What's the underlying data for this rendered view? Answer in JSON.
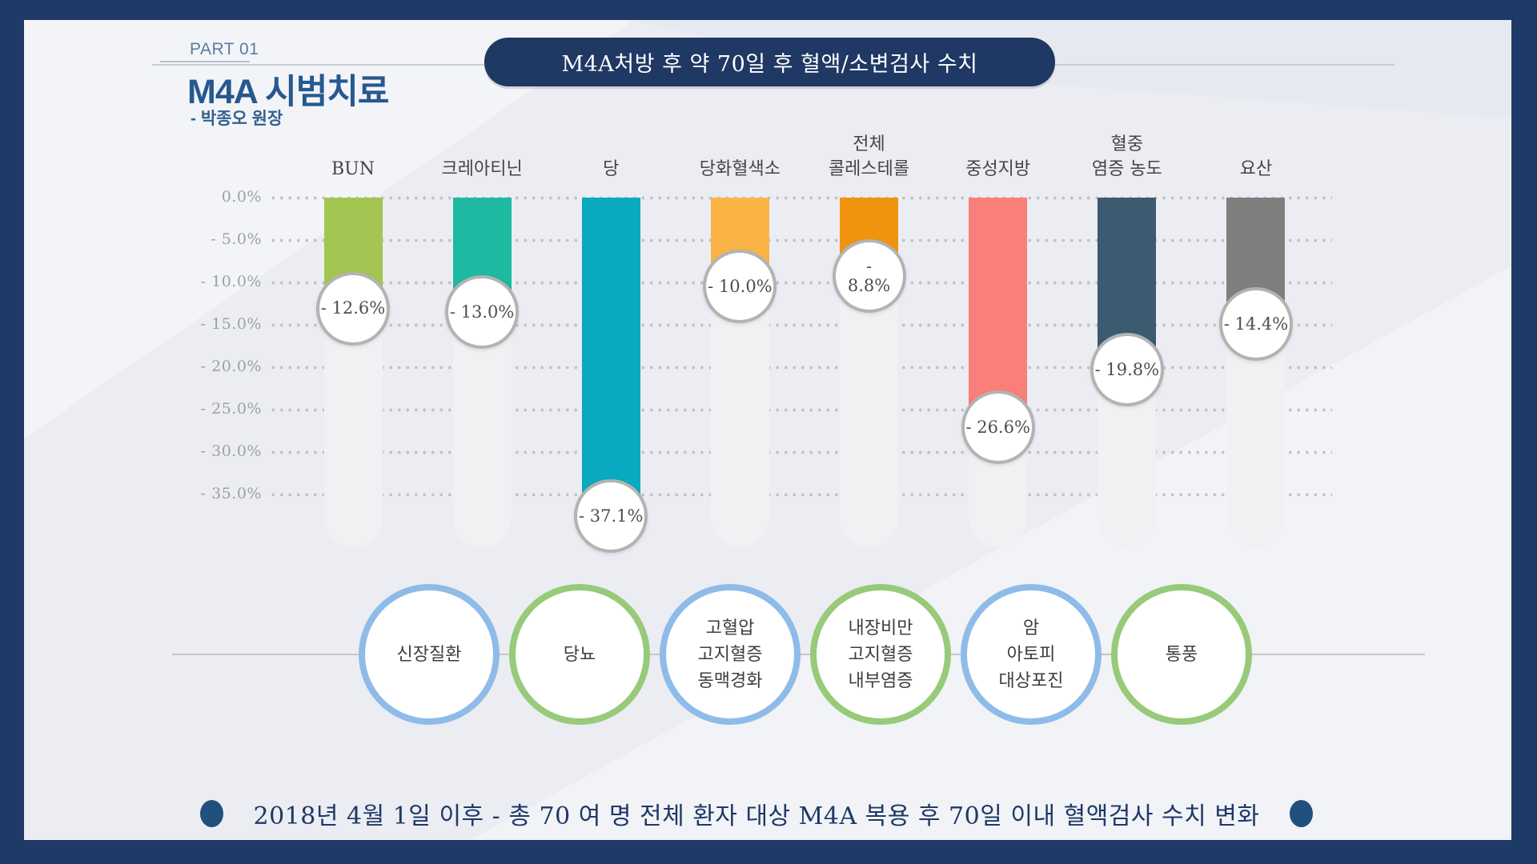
{
  "header": {
    "part_label": "PART 01",
    "title": "M4A 시범치료",
    "subtitle": "- 박종오 원장",
    "banner_title": "M4A처방 후 약 70일 후 혈액/소변검사 수치"
  },
  "chart_data": {
    "type": "bar",
    "title": "M4A처방 후 약 70일 후 혈액/소변검사 수치",
    "orientation": "vertical-negative",
    "categories": [
      "BUN",
      "크레아티닌",
      "당",
      "당화혈색소",
      "전체\n콜레스테롤",
      "중성지방",
      "혈중\n염증 농도",
      "요산"
    ],
    "values": [
      -12.6,
      -13.0,
      -37.1,
      -10.0,
      -8.8,
      -26.6,
      -19.8,
      -14.4
    ],
    "badge_labels": [
      "- 12.6%",
      "- 13.0%",
      "- 37.1%",
      "- 10.0%",
      "-\n8.8%",
      "- 26.6%",
      "- 19.8%",
      "- 14.4%"
    ],
    "bar_colors": [
      "#a3c653",
      "#1db9a0",
      "#09a9c0",
      "#fab446",
      "#f0940f",
      "#f97f78",
      "#3c5a70",
      "#7f7f7f"
    ],
    "unit": "%",
    "ylim": [
      0,
      -40
    ],
    "yticks": [
      0,
      -5,
      -10,
      -15,
      -20,
      -25,
      -30,
      -35
    ],
    "ytick_labels": [
      "0.0%",
      "- 5.0%",
      "- 10.0%",
      "- 15.0%",
      "- 20.0%",
      "- 25.0%",
      "- 30.0%",
      "- 35.0%"
    ],
    "grid": "dotted-horizontal",
    "legend": "none"
  },
  "condition_circles": {
    "border_colors": {
      "blue": "#8fbbe8",
      "green": "#97ca79"
    },
    "items": [
      {
        "label": "신장질환",
        "color": "blue"
      },
      {
        "label": "당뇨",
        "color": "green"
      },
      {
        "label": "고혈압\n고지혈증\n동맥경화",
        "color": "blue"
      },
      {
        "label": "내장비만\n고지혈증\n내부염증",
        "color": "green"
      },
      {
        "label": "암\n아토피\n대상포진",
        "color": "blue"
      },
      {
        "label": "통풍",
        "color": "green"
      }
    ]
  },
  "footer": {
    "text": "2018년 4월 1일 이후 - 총 70 여 명 전체 환자 대상 M4A 복용 후 70일 이내 혈액검사 수치 변화"
  }
}
